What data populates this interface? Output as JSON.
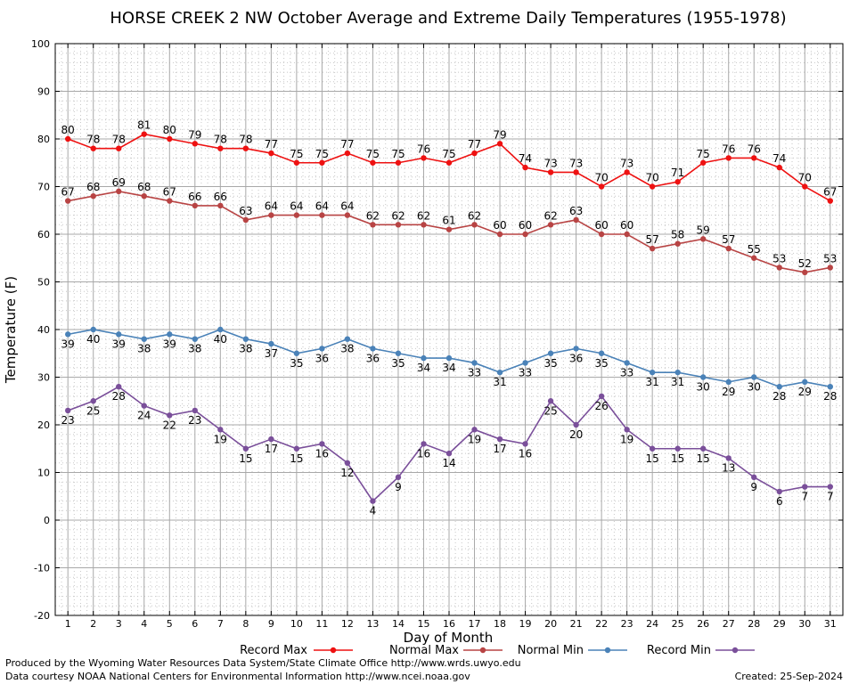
{
  "chart_data": {
    "type": "line",
    "title": "HORSE CREEK 2 NW October Average and Extreme Daily Temperatures (1955-1978)",
    "xlabel": "Day of Month",
    "ylabel": "Temperature (F)",
    "xlim": [
      1,
      31
    ],
    "ylim": [
      -20,
      100
    ],
    "yticks": [
      -20,
      -10,
      0,
      10,
      20,
      30,
      40,
      50,
      60,
      70,
      80,
      90,
      100
    ],
    "x": [
      1,
      2,
      3,
      4,
      5,
      6,
      7,
      8,
      9,
      10,
      11,
      12,
      13,
      14,
      15,
      16,
      17,
      18,
      19,
      20,
      21,
      22,
      23,
      24,
      25,
      26,
      27,
      28,
      29,
      30,
      31
    ],
    "grid": true,
    "legend_position": "bottom",
    "series": [
      {
        "name": "Record Max",
        "color": "#ee1111",
        "label_pos": "above",
        "values": [
          80,
          78,
          78,
          81,
          80,
          79,
          78,
          78,
          77,
          75,
          75,
          77,
          75,
          75,
          76,
          75,
          77,
          79,
          74,
          73,
          73,
          70,
          73,
          70,
          71,
          75,
          76,
          76,
          74,
          70,
          67
        ]
      },
      {
        "name": "Normal Max",
        "color": "#b84444",
        "label_pos": "above",
        "values": [
          67,
          68,
          69,
          68,
          67,
          66,
          66,
          63,
          64,
          64,
          64,
          64,
          62,
          62,
          62,
          61,
          62,
          60,
          60,
          62,
          63,
          60,
          60,
          57,
          58,
          59,
          57,
          55,
          53,
          52,
          53
        ]
      },
      {
        "name": "Normal Min",
        "color": "#4a82b8",
        "label_pos": "below",
        "values": [
          39,
          40,
          39,
          38,
          39,
          38,
          40,
          38,
          37,
          35,
          36,
          38,
          36,
          35,
          34,
          34,
          33,
          31,
          33,
          35,
          36,
          35,
          33,
          31,
          31,
          30,
          29,
          30,
          28,
          29,
          28
        ]
      },
      {
        "name": "Record Min",
        "color": "#7a4f9a",
        "label_pos": "below",
        "values": [
          23,
          25,
          28,
          24,
          22,
          23,
          19,
          15,
          17,
          15,
          16,
          12,
          4,
          9,
          16,
          14,
          19,
          17,
          16,
          25,
          20,
          26,
          19,
          15,
          15,
          15,
          13,
          9,
          6,
          7,
          7
        ]
      }
    ]
  },
  "footer": {
    "produced_by": "Produced by the Wyoming Water Resources Data System/State Climate Office http://www.wrds.uwyo.edu",
    "courtesy": "Data courtesy NOAA National Centers for Environmental Information http://www.ncei.noaa.gov",
    "created": "Created:  25-Sep-2024"
  }
}
